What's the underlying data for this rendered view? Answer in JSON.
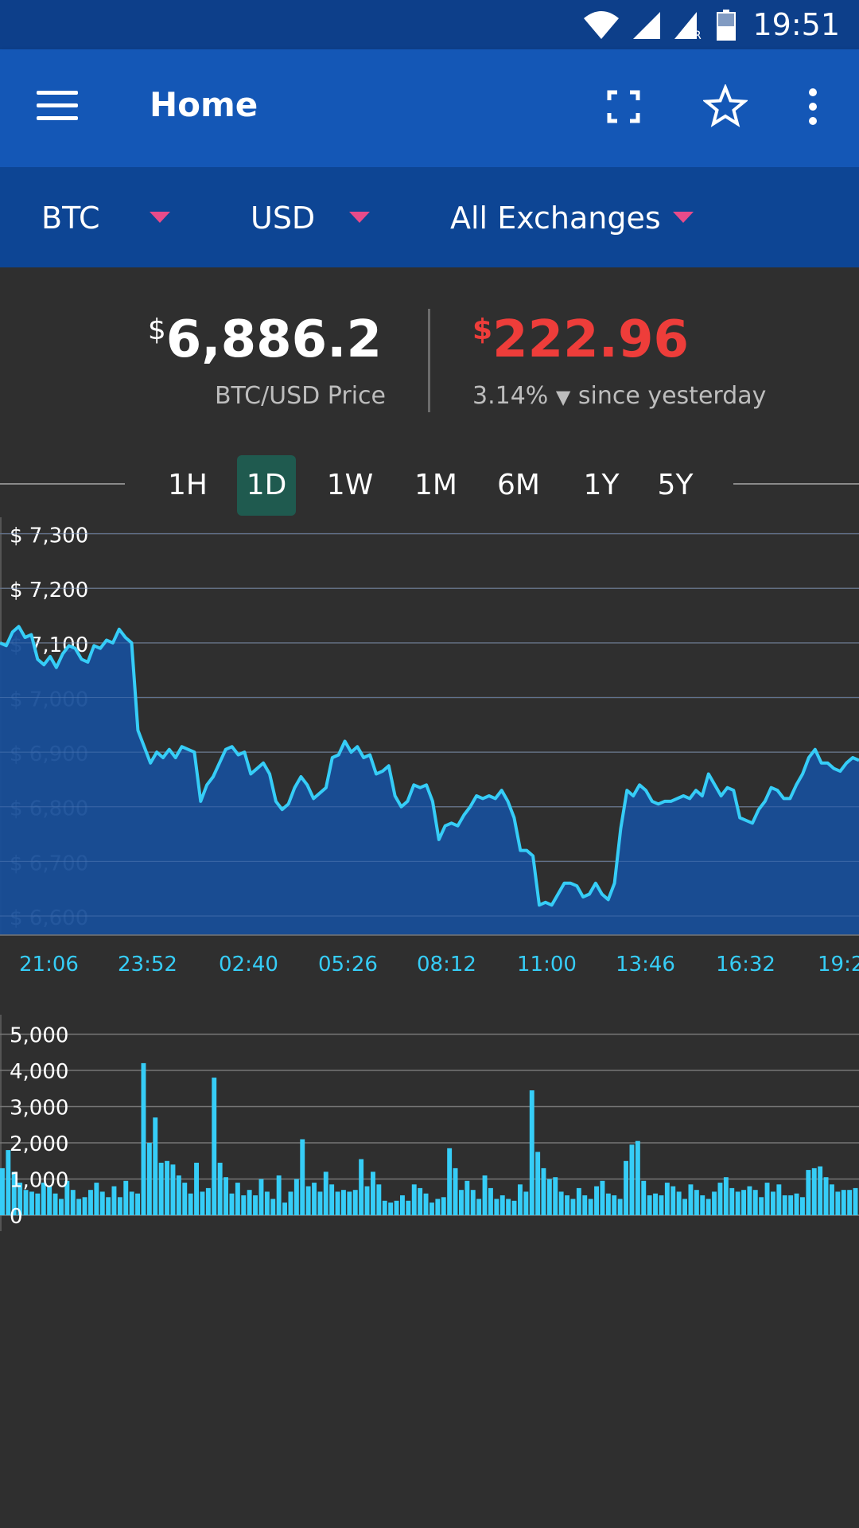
{
  "status": {
    "time": "19:51",
    "network_badge": "R"
  },
  "app_bar": {
    "title": "Home"
  },
  "selectors": {
    "coin": "BTC",
    "currency": "USD",
    "exchange": "All Exchanges"
  },
  "price": {
    "symbol": "$",
    "value": "6,886.2",
    "label": "BTC/USD Price"
  },
  "change": {
    "symbol": "$",
    "value": "222.96",
    "percent": "3.14%",
    "direction": "▼",
    "label": "since yesterday",
    "color": "#ee3d3a"
  },
  "ranges": [
    "1H",
    "1D",
    "1W",
    "1M",
    "6M",
    "1Y",
    "5Y"
  ],
  "active_range": "1D",
  "colors": {
    "accent_line": "#36cdf7",
    "area_fill": "#184e98",
    "caret": "#e84b8a",
    "active_tab": "#1f5a4f"
  },
  "chart_data": [
    {
      "type": "area",
      "title": "",
      "xlabel": "",
      "ylabel": "",
      "y_tick_labels": [
        "$ 7,300",
        "$ 7,200",
        "$ 7,100",
        "$ 7,000",
        "$ 6,900",
        "$ 6,800",
        "$ 6,700",
        "$ 6,600"
      ],
      "y_ticks": [
        7300,
        7200,
        7100,
        7000,
        6900,
        6800,
        6700,
        6600
      ],
      "ylim": [
        6565,
        7330
      ],
      "x_tick_labels": [
        "21:06",
        "23:52",
        "02:40",
        "05:26",
        "08:12",
        "11:00",
        "13:46",
        "16:32",
        "19:2"
      ],
      "grid": true,
      "series": [
        {
          "values": [
            7100,
            7095,
            7120,
            7130,
            7110,
            7115,
            7070,
            7060,
            7075,
            7055,
            7080,
            7095,
            7090,
            7070,
            7065,
            7095,
            7090,
            7105,
            7100,
            7125,
            7110,
            7100,
            6940,
            6910,
            6880,
            6900,
            6890,
            6905,
            6890,
            6910,
            6905,
            6900,
            6810,
            6840,
            6855,
            6880,
            6905,
            6910,
            6895,
            6900,
            6860,
            6870,
            6880,
            6860,
            6810,
            6795,
            6805,
            6835,
            6855,
            6840,
            6815,
            6825,
            6835,
            6890,
            6895,
            6920,
            6900,
            6910,
            6890,
            6895,
            6860,
            6865,
            6875,
            6820,
            6800,
            6810,
            6840,
            6835,
            6840,
            6810,
            6740,
            6765,
            6770,
            6765,
            6785,
            6800,
            6820,
            6815,
            6820,
            6815,
            6830,
            6810,
            6780,
            6720,
            6720,
            6710,
            6620,
            6625,
            6620,
            6640,
            6660,
            6660,
            6655,
            6635,
            6640,
            6660,
            6640,
            6630,
            6660,
            6760,
            6830,
            6820,
            6840,
            6830,
            6810,
            6805,
            6810,
            6810,
            6815,
            6820,
            6815,
            6830,
            6820,
            6860,
            6840,
            6820,
            6835,
            6830,
            6780,
            6775,
            6770,
            6795,
            6810,
            6835,
            6830,
            6815,
            6815,
            6840,
            6860,
            6890,
            6905,
            6880,
            6880,
            6870,
            6865,
            6880,
            6890,
            6885
          ]
        }
      ]
    },
    {
      "type": "bar",
      "title": "",
      "xlabel": "",
      "ylabel": "",
      "y_tick_labels": [
        "5,000",
        "4,000",
        "3,000",
        "2,000",
        "1,000",
        "0"
      ],
      "y_ticks": [
        5000,
        4000,
        3000,
        2000,
        1000,
        0
      ],
      "ylim": [
        0,
        5100
      ],
      "grid": true,
      "series": [
        {
          "values": [
            1300,
            1800,
            1200,
            900,
            700,
            650,
            600,
            900,
            800,
            600,
            450,
            950,
            700,
            450,
            500,
            700,
            900,
            650,
            500,
            800,
            500,
            950,
            650,
            600,
            4200,
            2000,
            2700,
            1450,
            1500,
            1400,
            1100,
            900,
            600,
            1450,
            650,
            750,
            3800,
            1450,
            1050,
            600,
            900,
            550,
            700,
            550,
            1000,
            650,
            450,
            1100,
            350,
            650,
            1000,
            2100,
            800,
            900,
            650,
            1200,
            850,
            650,
            700,
            650,
            700,
            1550,
            800,
            1200,
            850,
            400,
            350,
            400,
            550,
            400,
            850,
            750,
            600,
            350,
            450,
            500,
            1850,
            1300,
            700,
            950,
            700,
            450,
            1100,
            750,
            450,
            550,
            450,
            400,
            850,
            650,
            3450,
            1750,
            1300,
            1000,
            1050,
            650,
            550,
            450,
            750,
            550,
            450,
            800,
            950,
            600,
            550,
            450,
            1500,
            1950,
            2050,
            950,
            550,
            600,
            550,
            900,
            800,
            650,
            450,
            850,
            700,
            550,
            450,
            650,
            900,
            1050,
            750,
            650,
            700,
            800,
            700,
            500,
            900,
            650,
            850,
            550,
            550,
            600,
            500,
            1250,
            1300,
            1350,
            1050,
            850,
            650,
            700,
            700,
            750
          ]
        }
      ]
    }
  ]
}
